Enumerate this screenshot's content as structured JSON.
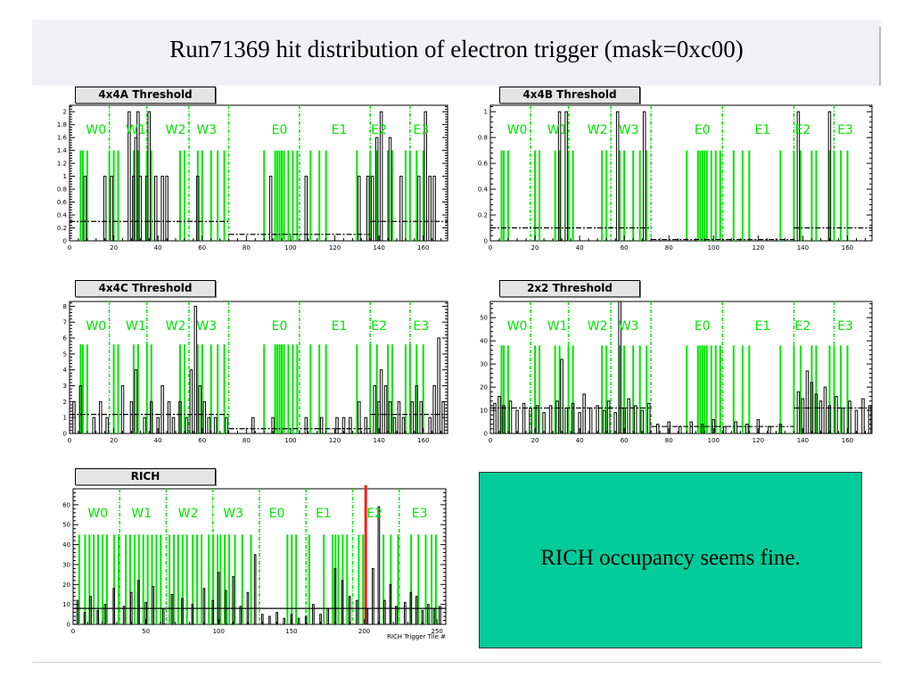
{
  "title": "Run71369  hit distribution of electron trigger (mask=0xc00)",
  "note": "RICH occupancy seems fine.",
  "colors": {
    "title_bg": "#f2f1f5",
    "note_bg": "#00cc99",
    "green": "#00e600",
    "red": "#ff1a1a",
    "hist": "#000000"
  },
  "chart_data": [
    {
      "type": "bar",
      "title": "4x4A Threshold",
      "xlabel": "",
      "xlim": [
        0,
        171
      ],
      "ylim": [
        0,
        2.1
      ],
      "x_ticks": [
        0,
        20,
        40,
        60,
        80,
        100,
        120,
        140,
        160
      ],
      "y_ticks": [
        0,
        0.2,
        0.4,
        0.6,
        0.8,
        1,
        1.2,
        1.4,
        1.6,
        1.8,
        2
      ],
      "green_height": 1.4,
      "region_labels": [
        "W0",
        "W1",
        "W2",
        "W3",
        "E0",
        "E1",
        "E2",
        "E3"
      ],
      "label_pos": [
        12,
        30,
        48,
        62,
        95,
        122,
        140,
        159
      ],
      "dividers": [
        18,
        35,
        54,
        72,
        104,
        136,
        154
      ],
      "green_bars": [
        5,
        6,
        8,
        18,
        20,
        22,
        29,
        31,
        35,
        37,
        50,
        52,
        58,
        60,
        64,
        67,
        70,
        88,
        93,
        94,
        95,
        96,
        97,
        99,
        101,
        103,
        109,
        113,
        116,
        130,
        136,
        139,
        144,
        146,
        152,
        154,
        157,
        160
      ],
      "threshold_segments": [
        [
          0,
          72,
          0.3
        ],
        [
          72,
          136,
          0.1
        ],
        [
          136,
          171,
          0.3
        ]
      ],
      "hist_pulses": [
        [
          7,
          1
        ],
        [
          16,
          1
        ],
        [
          19,
          1
        ],
        [
          27,
          2
        ],
        [
          29,
          1
        ],
        [
          30,
          1.6
        ],
        [
          31,
          2
        ],
        [
          32,
          1
        ],
        [
          35,
          1
        ],
        [
          36,
          2
        ],
        [
          39,
          1
        ],
        [
          42,
          1
        ],
        [
          44,
          1
        ],
        [
          58,
          1
        ],
        [
          91,
          1
        ],
        [
          107,
          1
        ],
        [
          131,
          1
        ],
        [
          135,
          1
        ],
        [
          137,
          1
        ],
        [
          139,
          1.6
        ],
        [
          141,
          2
        ],
        [
          145,
          1.6
        ],
        [
          150,
          1
        ],
        [
          158,
          1
        ],
        [
          161,
          2
        ],
        [
          163,
          1
        ],
        [
          165,
          1
        ]
      ],
      "red_bars": []
    },
    {
      "type": "bar",
      "title": "4x4B Threshold",
      "xlabel": "",
      "xlim": [
        0,
        171
      ],
      "ylim": [
        0,
        1.05
      ],
      "x_ticks": [
        0,
        20,
        40,
        60,
        80,
        100,
        120,
        140,
        160
      ],
      "y_ticks": [
        0,
        0.2,
        0.4,
        0.6,
        0.8,
        1
      ],
      "green_height": 0.7,
      "region_labels": [
        "W0",
        "W1",
        "W2",
        "W3",
        "E0",
        "E1",
        "E2",
        "E3"
      ],
      "label_pos": [
        12,
        30,
        48,
        62,
        95,
        122,
        140,
        159
      ],
      "dividers": [
        18,
        35,
        54,
        72,
        104,
        136,
        154
      ],
      "green_bars": [
        5,
        6,
        8,
        20,
        22,
        29,
        31,
        35,
        37,
        50,
        52,
        58,
        60,
        64,
        67,
        70,
        88,
        93,
        94,
        95,
        96,
        97,
        99,
        101,
        103,
        109,
        113,
        116,
        130,
        136,
        139,
        144,
        146,
        152,
        154,
        157,
        160
      ],
      "threshold_segments": [
        [
          0,
          72,
          0.1
        ],
        [
          72,
          136,
          0.01
        ],
        [
          136,
          171,
          0.1
        ]
      ],
      "hist_pulses": [
        [
          31,
          1
        ],
        [
          34,
          1
        ],
        [
          57,
          1
        ],
        [
          69,
          1
        ],
        [
          138,
          1
        ],
        [
          152,
          1
        ]
      ],
      "red_bars": []
    },
    {
      "type": "bar",
      "title": "4x4C Threshold",
      "xlabel": "",
      "xlim": [
        0,
        171
      ],
      "ylim": [
        0,
        8.3
      ],
      "x_ticks": [
        0,
        20,
        40,
        60,
        80,
        100,
        120,
        140,
        160
      ],
      "y_ticks": [
        0,
        1,
        2,
        3,
        4,
        5,
        6,
        7,
        8
      ],
      "green_height": 5.6,
      "region_labels": [
        "W0",
        "W1",
        "W2",
        "W3",
        "E0",
        "E1",
        "E2",
        "E3"
      ],
      "label_pos": [
        12,
        30,
        48,
        62,
        95,
        122,
        140,
        159
      ],
      "dividers": [
        18,
        35,
        54,
        72,
        104,
        136,
        154
      ],
      "green_bars": [
        5,
        6,
        8,
        20,
        22,
        29,
        31,
        35,
        37,
        50,
        52,
        58,
        60,
        64,
        67,
        70,
        88,
        93,
        94,
        95,
        96,
        97,
        99,
        101,
        103,
        109,
        113,
        116,
        130,
        136,
        139,
        144,
        146,
        152,
        154,
        157,
        160
      ],
      "threshold_segments": [
        [
          0,
          72,
          1.2
        ],
        [
          72,
          136,
          0.3
        ],
        [
          136,
          171,
          1.2
        ]
      ],
      "hist_pulses": [
        [
          2,
          2
        ],
        [
          5,
          3
        ],
        [
          11,
          1
        ],
        [
          14,
          2
        ],
        [
          17,
          1
        ],
        [
          24,
          3
        ],
        [
          28,
          2
        ],
        [
          30,
          4
        ],
        [
          34,
          1
        ],
        [
          37,
          2
        ],
        [
          40,
          1
        ],
        [
          42,
          3
        ],
        [
          45,
          2
        ],
        [
          47,
          1
        ],
        [
          50,
          2
        ],
        [
          53,
          1
        ],
        [
          55,
          4
        ],
        [
          57,
          8
        ],
        [
          59,
          3
        ],
        [
          61,
          2
        ],
        [
          63,
          1
        ],
        [
          66,
          1
        ],
        [
          71,
          1
        ],
        [
          83,
          1
        ],
        [
          92,
          1
        ],
        [
          107,
          1
        ],
        [
          114,
          1
        ],
        [
          121,
          1
        ],
        [
          124,
          1
        ],
        [
          127,
          1
        ],
        [
          131,
          2
        ],
        [
          134,
          1
        ],
        [
          138,
          3
        ],
        [
          140,
          2
        ],
        [
          141,
          4
        ],
        [
          143,
          3
        ],
        [
          145,
          2
        ],
        [
          147,
          1
        ],
        [
          149,
          2
        ],
        [
          151,
          1
        ],
        [
          155,
          2
        ],
        [
          157,
          3
        ],
        [
          159,
          2
        ],
        [
          163,
          1
        ],
        [
          165,
          3
        ],
        [
          167,
          6
        ],
        [
          169,
          2
        ]
      ],
      "red_bars": []
    },
    {
      "type": "bar",
      "title": "2x2 Threshold",
      "xlabel": "",
      "xlim": [
        0,
        171
      ],
      "ylim": [
        0,
        57
      ],
      "x_ticks": [
        0,
        20,
        40,
        60,
        80,
        100,
        120,
        140,
        160
      ],
      "y_ticks": [
        0,
        10,
        20,
        30,
        40,
        50
      ],
      "green_height": 38,
      "region_labels": [
        "W0",
        "W1",
        "W2",
        "W3",
        "E0",
        "E1",
        "E2",
        "E3"
      ],
      "label_pos": [
        12,
        30,
        48,
        62,
        95,
        122,
        140,
        159
      ],
      "dividers": [
        18,
        35,
        54,
        72,
        104,
        136,
        154
      ],
      "green_bars": [
        5,
        6,
        8,
        20,
        22,
        29,
        31,
        35,
        37,
        50,
        52,
        58,
        60,
        64,
        67,
        70,
        88,
        93,
        94,
        95,
        96,
        97,
        99,
        101,
        103,
        109,
        113,
        116,
        130,
        136,
        139,
        144,
        146,
        152,
        154,
        157,
        160
      ],
      "threshold_segments": [
        [
          0,
          72,
          11
        ],
        [
          72,
          136,
          3
        ],
        [
          136,
          171,
          11
        ]
      ],
      "hist_pulses": [
        [
          2,
          13
        ],
        [
          4,
          16
        ],
        [
          6,
          12
        ],
        [
          9,
          14
        ],
        [
          12,
          10
        ],
        [
          15,
          13
        ],
        [
          18,
          11
        ],
        [
          21,
          12
        ],
        [
          24,
          9
        ],
        [
          27,
          12
        ],
        [
          30,
          14
        ],
        [
          32,
          32
        ],
        [
          34,
          11
        ],
        [
          37,
          13
        ],
        [
          40,
          9
        ],
        [
          42,
          17
        ],
        [
          45,
          11
        ],
        [
          48,
          12
        ],
        [
          51,
          10
        ],
        [
          53,
          14
        ],
        [
          56,
          9
        ],
        [
          58,
          57
        ],
        [
          60,
          11
        ],
        [
          62,
          15
        ],
        [
          65,
          12
        ],
        [
          68,
          10
        ],
        [
          71,
          13
        ],
        [
          75,
          4
        ],
        [
          80,
          5
        ],
        [
          85,
          3
        ],
        [
          90,
          5
        ],
        [
          95,
          4
        ],
        [
          100,
          6
        ],
        [
          105,
          3
        ],
        [
          110,
          5
        ],
        [
          115,
          4
        ],
        [
          120,
          6
        ],
        [
          125,
          3
        ],
        [
          130,
          4
        ],
        [
          138,
          18
        ],
        [
          140,
          15
        ],
        [
          142,
          27
        ],
        [
          144,
          22
        ],
        [
          146,
          17
        ],
        [
          148,
          14
        ],
        [
          150,
          20
        ],
        [
          152,
          12
        ],
        [
          155,
          16
        ],
        [
          158,
          11
        ],
        [
          161,
          14
        ],
        [
          164,
          10
        ],
        [
          167,
          15
        ],
        [
          170,
          12
        ]
      ],
      "red_bars": []
    },
    {
      "type": "bar",
      "title": "RICH",
      "xlabel": "RICH Trigger Tile #",
      "xlim": [
        0,
        256
      ],
      "ylim": [
        0,
        68
      ],
      "x_ticks": [
        0,
        50,
        100,
        150,
        200,
        250
      ],
      "y_ticks": [
        0,
        10,
        20,
        30,
        40,
        50,
        60
      ],
      "green_height": 45,
      "region_labels": [
        "W0",
        "W1",
        "W2",
        "W3",
        "E0",
        "E1",
        "E2",
        "E3"
      ],
      "label_pos": [
        17,
        47,
        79,
        110,
        140,
        172,
        207,
        238
      ],
      "dividers": [
        32,
        64,
        96,
        128,
        160,
        192,
        224
      ],
      "green_bars": [
        4,
        8,
        11,
        14,
        17,
        20,
        23,
        28,
        31,
        36,
        39,
        42,
        45,
        48,
        51,
        54,
        57,
        60,
        66,
        69,
        72,
        75,
        78,
        82,
        85,
        88,
        93,
        96,
        99,
        101,
        104,
        107,
        111,
        116,
        122,
        147,
        150,
        153,
        162,
        172,
        178,
        180,
        182,
        185,
        188,
        196,
        199,
        213,
        218,
        223,
        232,
        237,
        242,
        246,
        249
      ],
      "threshold_segments": [
        [
          0,
          256,
          8
        ]
      ],
      "hist_pulses": [
        [
          3,
          12
        ],
        [
          8,
          6
        ],
        [
          12,
          14
        ],
        [
          17,
          7
        ],
        [
          22,
          10
        ],
        [
          28,
          18
        ],
        [
          35,
          9
        ],
        [
          40,
          16
        ],
        [
          45,
          22
        ],
        [
          50,
          11
        ],
        [
          55,
          19
        ],
        [
          62,
          8
        ],
        [
          68,
          15
        ],
        [
          75,
          13
        ],
        [
          82,
          10
        ],
        [
          90,
          18
        ],
        [
          96,
          12
        ],
        [
          100,
          26
        ],
        [
          105,
          17
        ],
        [
          110,
          24
        ],
        [
          115,
          9
        ],
        [
          120,
          16
        ],
        [
          125,
          35
        ],
        [
          130,
          5
        ],
        [
          135,
          4
        ],
        [
          140,
          6
        ],
        [
          145,
          3
        ],
        [
          150,
          5
        ],
        [
          155,
          3
        ],
        [
          160,
          4
        ],
        [
          165,
          10
        ],
        [
          170,
          5
        ],
        [
          175,
          8
        ],
        [
          180,
          28
        ],
        [
          185,
          22
        ],
        [
          190,
          14
        ],
        [
          195,
          12
        ],
        [
          202,
          8
        ],
        [
          206,
          28
        ],
        [
          210,
          59
        ],
        [
          214,
          12
        ],
        [
          218,
          20
        ],
        [
          222,
          9
        ],
        [
          228,
          11
        ],
        [
          232,
          16
        ],
        [
          236,
          14
        ],
        [
          240,
          7
        ],
        [
          244,
          10
        ],
        [
          248,
          8
        ],
        [
          252,
          9
        ]
      ],
      "red_bars": [
        201
      ]
    }
  ]
}
